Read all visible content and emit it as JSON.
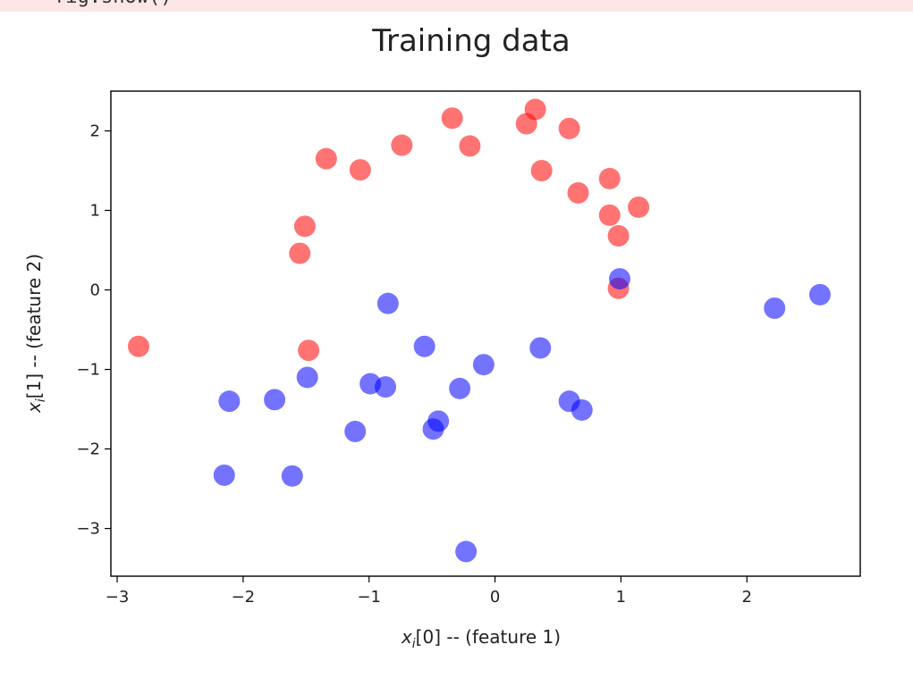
{
  "code_cell": {
    "snippet": "fig.show()"
  },
  "chart_data": {
    "type": "scatter",
    "title": "Training data",
    "xlabel": "x_i[0] -- (feature 1)",
    "ylabel": "x_i[1] -- (feature 2)",
    "xlabel_parts": {
      "var": "x",
      "sub": "i",
      "rest": "[0] -- (feature 1)"
    },
    "ylabel_parts": {
      "var": "x",
      "sub": "i",
      "rest": "[1] -- (feature 2)"
    },
    "xlim": [
      -3.05,
      2.9
    ],
    "ylim": [
      -3.6,
      2.5
    ],
    "xticks": [
      -3,
      -2,
      -1,
      0,
      1,
      2
    ],
    "yticks": [
      -3,
      -2,
      -1,
      0,
      1,
      2
    ],
    "xtick_labels": [
      "−3",
      "−2",
      "−1",
      "0",
      "1",
      "2"
    ],
    "ytick_labels": [
      "−3",
      "−2",
      "−1",
      "0",
      "1",
      "2"
    ],
    "grid": false,
    "series": [
      {
        "color": "#ff0000",
        "alpha": 0.55,
        "points": [
          [
            -2.83,
            -0.71
          ],
          [
            -1.48,
            -0.76
          ],
          [
            -1.55,
            0.46
          ],
          [
            -1.51,
            0.8
          ],
          [
            -1.34,
            1.65
          ],
          [
            -1.07,
            1.51
          ],
          [
            -0.74,
            1.82
          ],
          [
            -0.34,
            2.16
          ],
          [
            -0.2,
            1.81
          ],
          [
            0.25,
            2.09
          ],
          [
            0.32,
            2.27
          ],
          [
            0.37,
            1.5
          ],
          [
            0.59,
            2.03
          ],
          [
            0.66,
            1.22
          ],
          [
            0.91,
            1.4
          ],
          [
            0.91,
            0.94
          ],
          [
            1.14,
            1.04
          ],
          [
            0.98,
            0.68
          ],
          [
            0.98,
            0.02
          ]
        ]
      },
      {
        "color": "#0000ff",
        "alpha": 0.55,
        "points": [
          [
            -2.15,
            -2.33
          ],
          [
            -2.11,
            -1.4
          ],
          [
            -1.75,
            -1.38
          ],
          [
            -1.61,
            -2.34
          ],
          [
            -1.49,
            -1.1
          ],
          [
            -1.11,
            -1.78
          ],
          [
            -0.99,
            -1.18
          ],
          [
            -0.87,
            -1.22
          ],
          [
            -0.85,
            -0.17
          ],
          [
            -0.56,
            -0.71
          ],
          [
            -0.49,
            -1.75
          ],
          [
            -0.45,
            -1.65
          ],
          [
            -0.28,
            -1.24
          ],
          [
            -0.23,
            -3.29
          ],
          [
            -0.09,
            -0.94
          ],
          [
            0.36,
            -0.73
          ],
          [
            0.59,
            -1.4
          ],
          [
            0.69,
            -1.51
          ],
          [
            0.99,
            0.14
          ],
          [
            2.22,
            -0.23
          ],
          [
            2.58,
            -0.06
          ]
        ]
      }
    ]
  }
}
